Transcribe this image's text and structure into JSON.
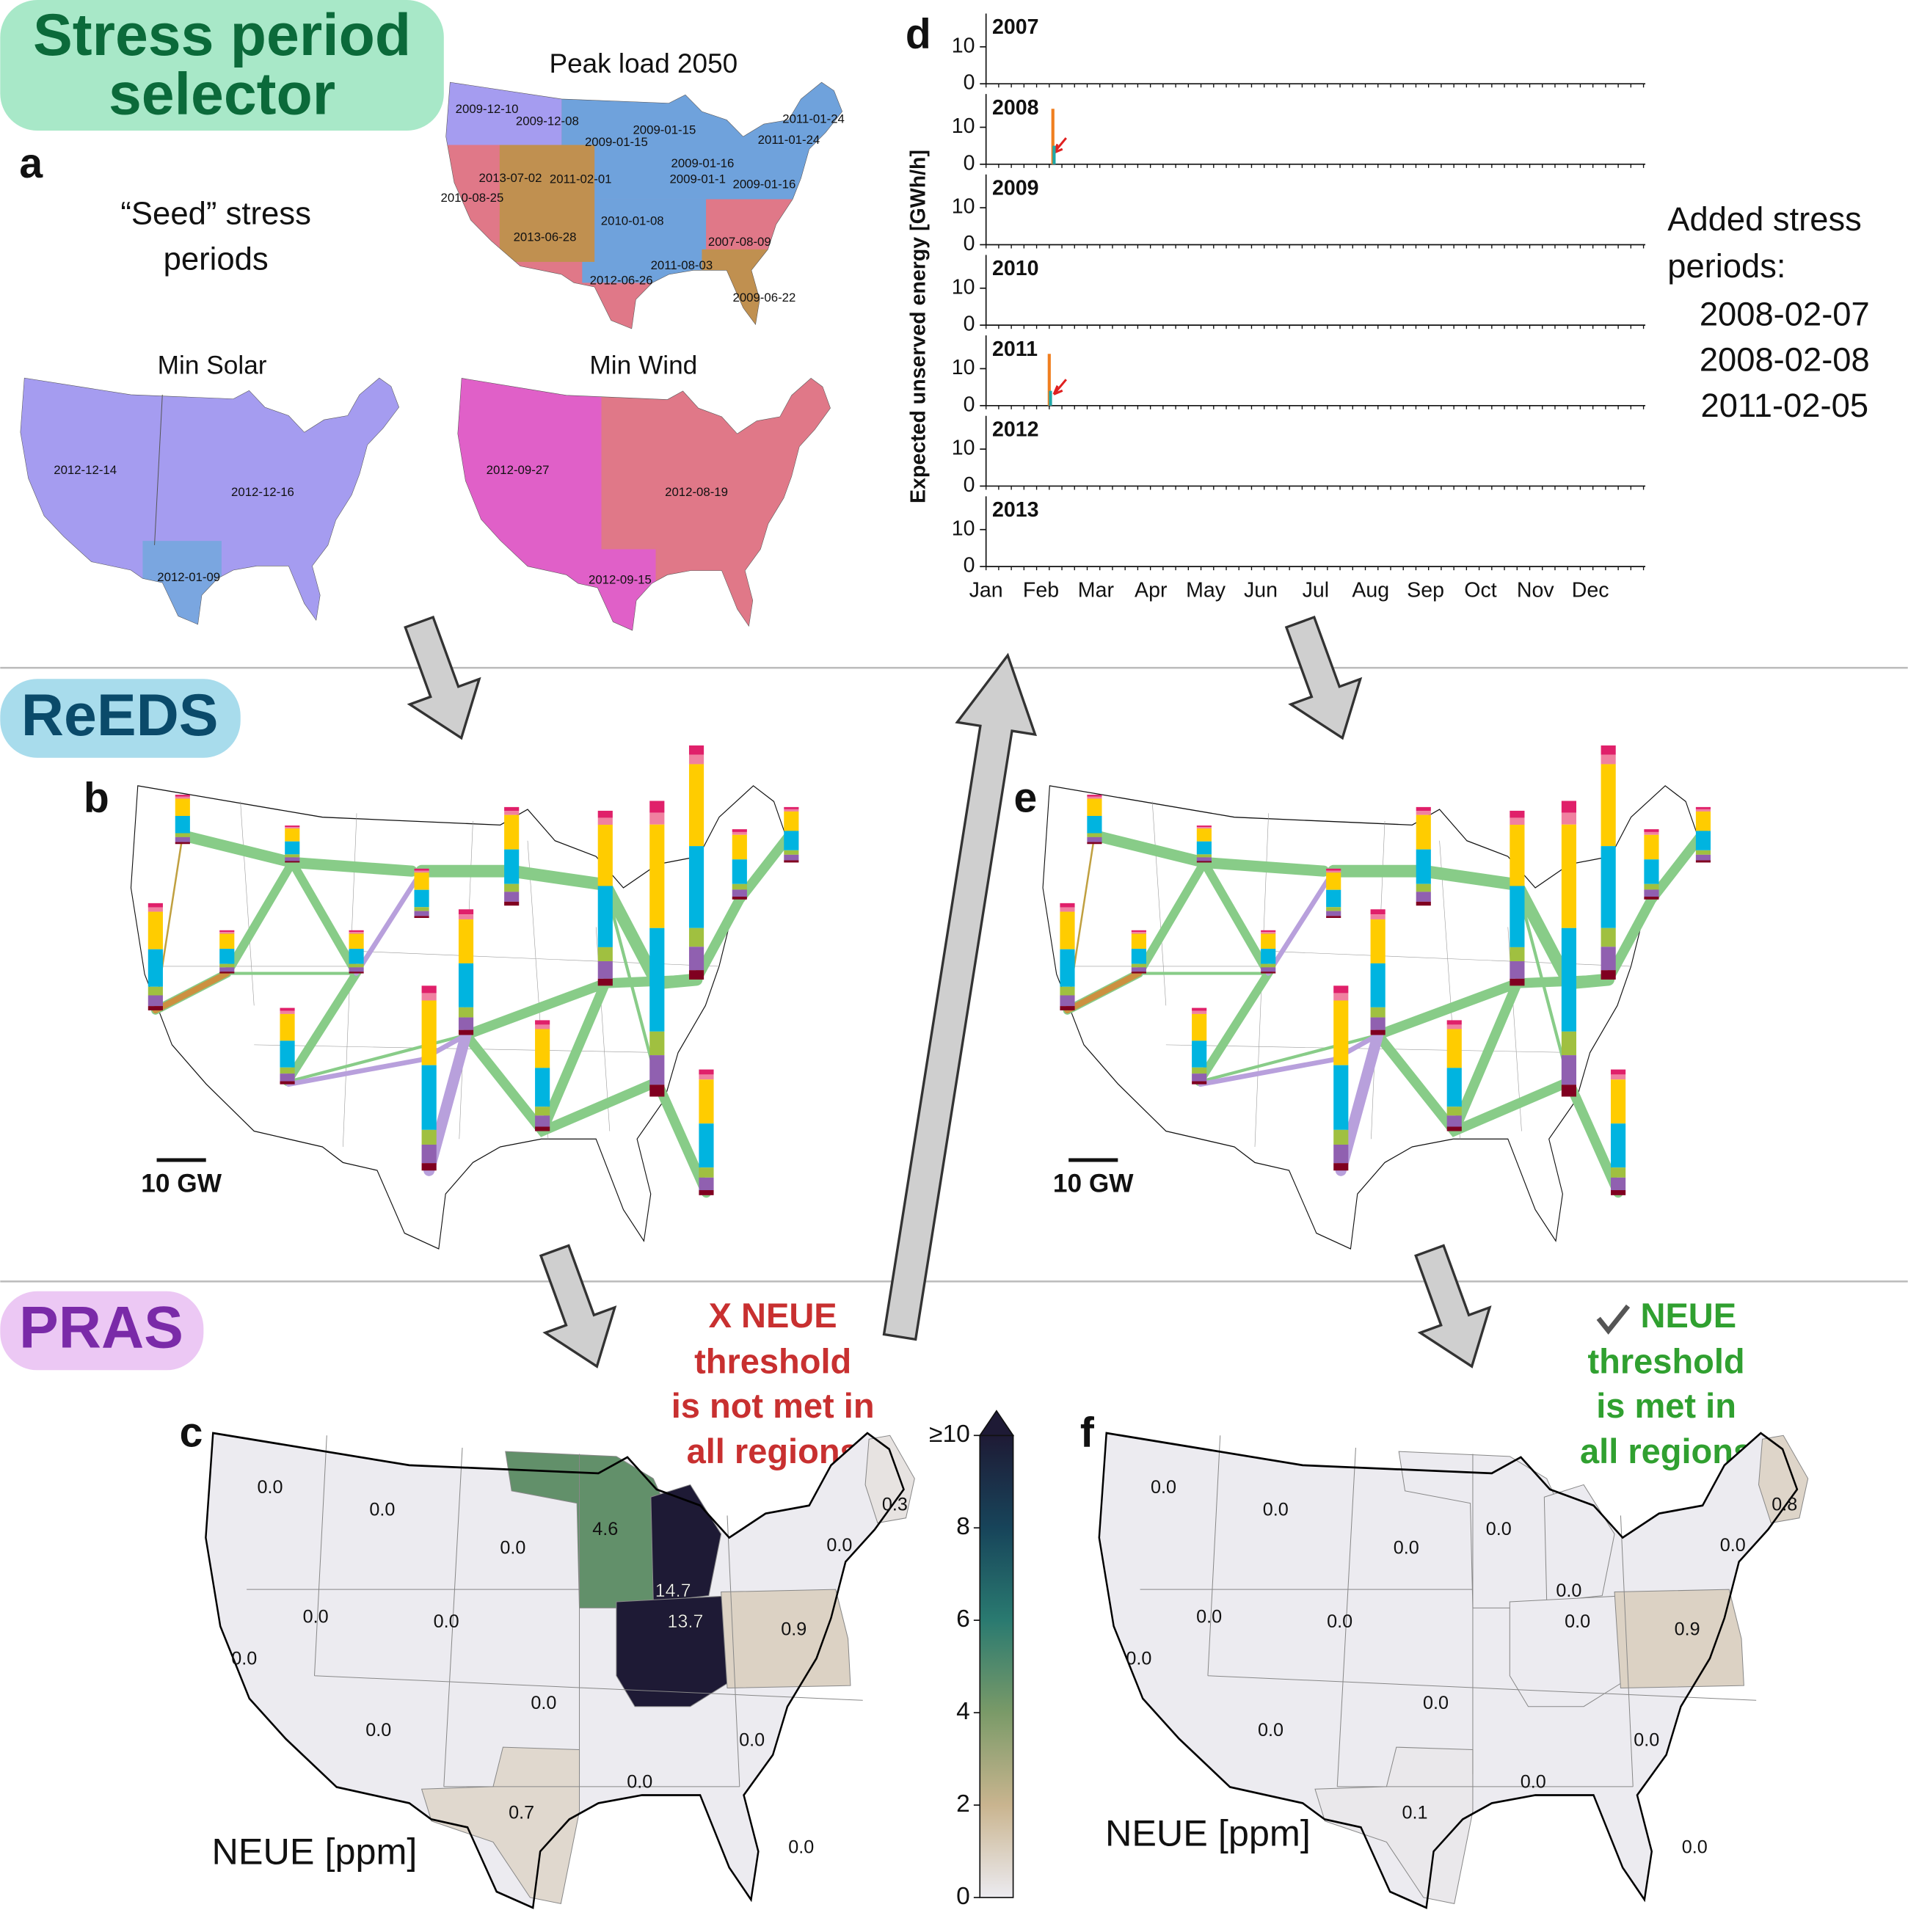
{
  "sections": {
    "selector": [
      "Stress period",
      "selector"
    ],
    "reeds": "ReEDS",
    "pras": "PRAS"
  },
  "panel_letters": {
    "a": "a",
    "b": "b",
    "c": "c",
    "d": "d",
    "e": "e",
    "f": "f"
  },
  "panel_a": {
    "seed_label": [
      "“Seed” stress",
      "periods"
    ],
    "peak_load": {
      "title": "Peak load 2050",
      "labels": [
        "2009-12-10",
        "2009-12-08",
        "2009-01-15",
        "2009-01-15",
        "2011-01-24",
        "2011-01-24",
        "2013-07-02",
        "2011-02-01",
        "2009-01-16",
        "2009-01-1",
        "2009-01-16",
        "2010-08-25",
        "2010-01-08",
        "2013-06-28",
        "2007-08-09",
        "2011-08-03",
        "2012-06-26",
        "2009-06-22"
      ]
    },
    "min_solar": {
      "title": "Min Solar",
      "labels": [
        "2012-12-14",
        "2012-12-16",
        "2012-01-09"
      ]
    },
    "min_wind": {
      "title": "Min Wind",
      "labels": [
        "2012-09-27",
        "2012-08-19",
        "2012-09-15"
      ]
    }
  },
  "chart_data": {
    "type": "spike",
    "ylabel": "Expected unserved energy [GWh/h]",
    "ylim": [
      0,
      19
    ],
    "yticks": [
      0,
      10
    ],
    "categories": [
      "Jan",
      "Feb",
      "Mar",
      "Apr",
      "May",
      "Jun",
      "Jul",
      "Aug",
      "Sep",
      "Oct",
      "Nov",
      "Dec"
    ],
    "colors": [
      "#f07f20",
      "#1fa8a8"
    ],
    "panels": [
      {
        "title": "2007",
        "spikes": []
      },
      {
        "title": "2008",
        "spikes": [
          {
            "date": "2008-02-07",
            "values": [
              15,
              5
            ]
          }
        ]
      },
      {
        "title": "2009",
        "spikes": []
      },
      {
        "title": "2010",
        "spikes": []
      },
      {
        "title": "2011",
        "spikes": [
          {
            "date": "2011-02-05",
            "values": [
              14,
              4
            ]
          }
        ]
      },
      {
        "title": "2012",
        "spikes": []
      },
      {
        "title": "2013",
        "spikes": []
      }
    ]
  },
  "added_periods": {
    "title": [
      "Added stress",
      "periods:"
    ],
    "dates": [
      "2008-02-07",
      "2008-02-08",
      "2011-02-05"
    ]
  },
  "scale_label": "10 GW",
  "verdict_c": [
    "X NEUE",
    "threshold",
    "is not met in",
    "all regions"
  ],
  "verdict_f": [
    "NEUE",
    "threshold",
    "is met in",
    "all regions"
  ],
  "neue_label": "NEUE [ppm]",
  "panel_c": {
    "values": [
      "0.0",
      "0.0",
      "0.0",
      "4.6",
      "0.3",
      "0.0",
      "0.0",
      "0.0",
      "0.0",
      "14.7",
      "13.7",
      "0.9",
      "0.0",
      "0.0",
      "0.0",
      "0.0",
      "0.7",
      "0.0"
    ]
  },
  "panel_f": {
    "values": [
      "0.0",
      "0.0",
      "0.0",
      "0.0",
      "0.8",
      "0.0",
      "0.0",
      "0.0",
      "0.0",
      "0.0",
      "0.0",
      "0.9",
      "0.0",
      "0.0",
      "0.0",
      "0.0",
      "0.1",
      "0.0"
    ]
  },
  "colorbar": {
    "lim": [
      0,
      10
    ],
    "ticks": [
      0,
      2,
      4,
      6,
      8,
      {
        "value": 10,
        "label": "≥10"
      }
    ]
  }
}
